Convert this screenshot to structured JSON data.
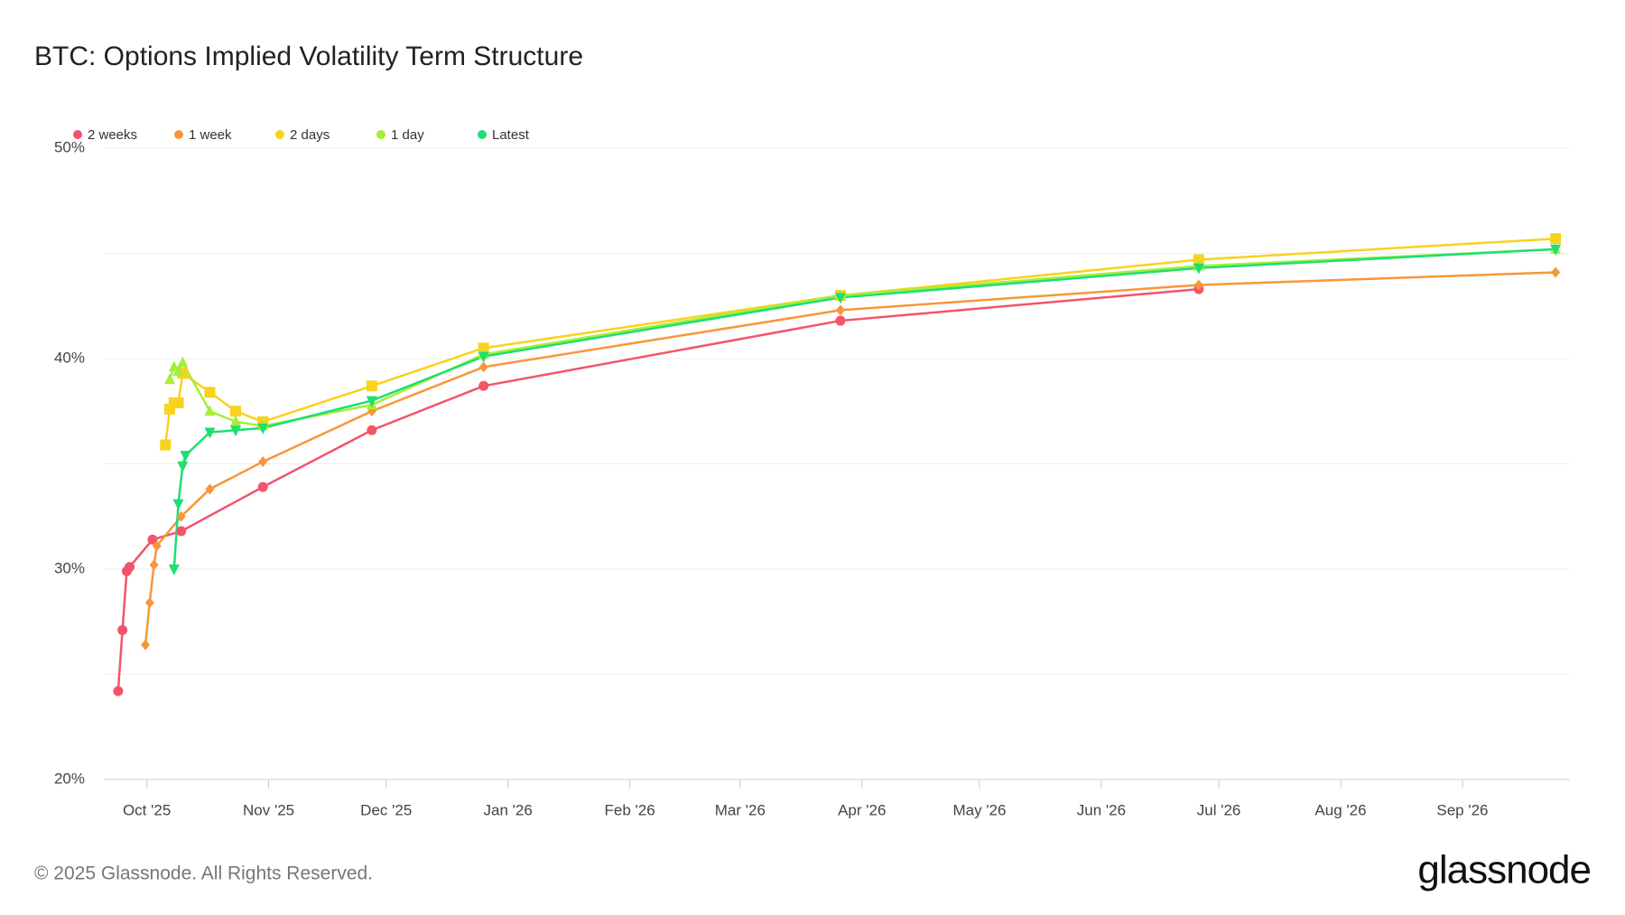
{
  "chart_data": {
    "type": "line",
    "title": "BTC: Options Implied Volatility Term Structure",
    "footer": "© 2025 Glassnode. All Rights Reserved.",
    "brand": "glassnode",
    "xlim": [
      2025.718,
      2026.741
    ],
    "xticks": [
      {
        "value": 2025.748,
        "label": "Oct '25"
      },
      {
        "value": 2025.833,
        "label": "Nov '25"
      },
      {
        "value": 2025.915,
        "label": "Dec '25"
      },
      {
        "value": 2026.0,
        "label": "Jan '26"
      },
      {
        "value": 2026.085,
        "label": "Feb '26"
      },
      {
        "value": 2026.162,
        "label": "Mar '26"
      },
      {
        "value": 2026.247,
        "label": "Apr '26"
      },
      {
        "value": 2026.329,
        "label": "May '26"
      },
      {
        "value": 2026.414,
        "label": "Jun '26"
      },
      {
        "value": 2026.496,
        "label": "Jul '26"
      },
      {
        "value": 2026.581,
        "label": "Aug '26"
      },
      {
        "value": 2026.666,
        "label": "Sep '26"
      }
    ],
    "ylim": [
      20,
      50
    ],
    "yticks": [
      {
        "value": 20,
        "label": "20%"
      },
      {
        "value": 25,
        "label": null
      },
      {
        "value": 30,
        "label": "30%"
      },
      {
        "value": 35,
        "label": null
      },
      {
        "value": 40,
        "label": "40%"
      },
      {
        "value": 45,
        "label": null
      },
      {
        "value": 50,
        "label": "50%"
      }
    ],
    "grid": true,
    "legend": "top-left",
    "series": [
      {
        "name": "2 weeks",
        "color": "#f2546b",
        "marker": "circle",
        "x": [
          2025.728,
          2025.731,
          2025.734,
          2025.736,
          2025.752,
          2025.772,
          2025.829,
          2025.905,
          2025.983,
          2026.232,
          2026.482
        ],
        "values": [
          24.2,
          27.1,
          29.9,
          30.1,
          31.4,
          31.8,
          33.9,
          36.6,
          38.7,
          41.8,
          43.3
        ]
      },
      {
        "name": "1 week",
        "color": "#f7973a",
        "marker": "diamond",
        "x": [
          2025.747,
          2025.75,
          2025.753,
          2025.755,
          2025.772,
          2025.792,
          2025.829,
          2025.905,
          2025.983,
          2026.232,
          2026.482,
          2026.731
        ],
        "values": [
          26.4,
          28.4,
          30.2,
          31.1,
          32.5,
          33.8,
          35.1,
          37.5,
          39.6,
          42.3,
          43.5,
          44.1
        ]
      },
      {
        "name": "2 days",
        "color": "#f8d21c",
        "marker": "square",
        "x": [
          2025.761,
          2025.764,
          2025.767,
          2025.77,
          2025.773,
          2025.792,
          2025.81,
          2025.829,
          2025.905,
          2025.983,
          2026.232,
          2026.482,
          2026.731
        ],
        "values": [
          35.9,
          37.6,
          37.9,
          37.9,
          39.3,
          38.4,
          37.5,
          37.0,
          38.7,
          40.5,
          43.0,
          44.7,
          45.7
        ]
      },
      {
        "name": "1 day",
        "color": "#a4ef3a",
        "marker": "triangle-up",
        "x": [
          2025.764,
          2025.767,
          2025.77,
          2025.773,
          2025.792,
          2025.81,
          2025.829,
          2025.905,
          2025.983,
          2026.232,
          2026.482,
          2026.731
        ],
        "values": [
          39.0,
          39.6,
          39.4,
          39.8,
          37.5,
          37.0,
          36.8,
          37.8,
          40.2,
          43.0,
          44.4,
          45.2
        ]
      },
      {
        "name": "Latest",
        "color": "#1ddf72",
        "marker": "triangle-down",
        "x": [
          2025.767,
          2025.77,
          2025.773,
          2025.775,
          2025.792,
          2025.81,
          2025.829,
          2025.905,
          2025.983,
          2026.232,
          2026.482,
          2026.731
        ],
        "values": [
          30.0,
          33.1,
          34.9,
          35.4,
          36.5,
          36.6,
          36.7,
          38.0,
          40.1,
          42.9,
          44.3,
          45.2
        ]
      }
    ]
  }
}
